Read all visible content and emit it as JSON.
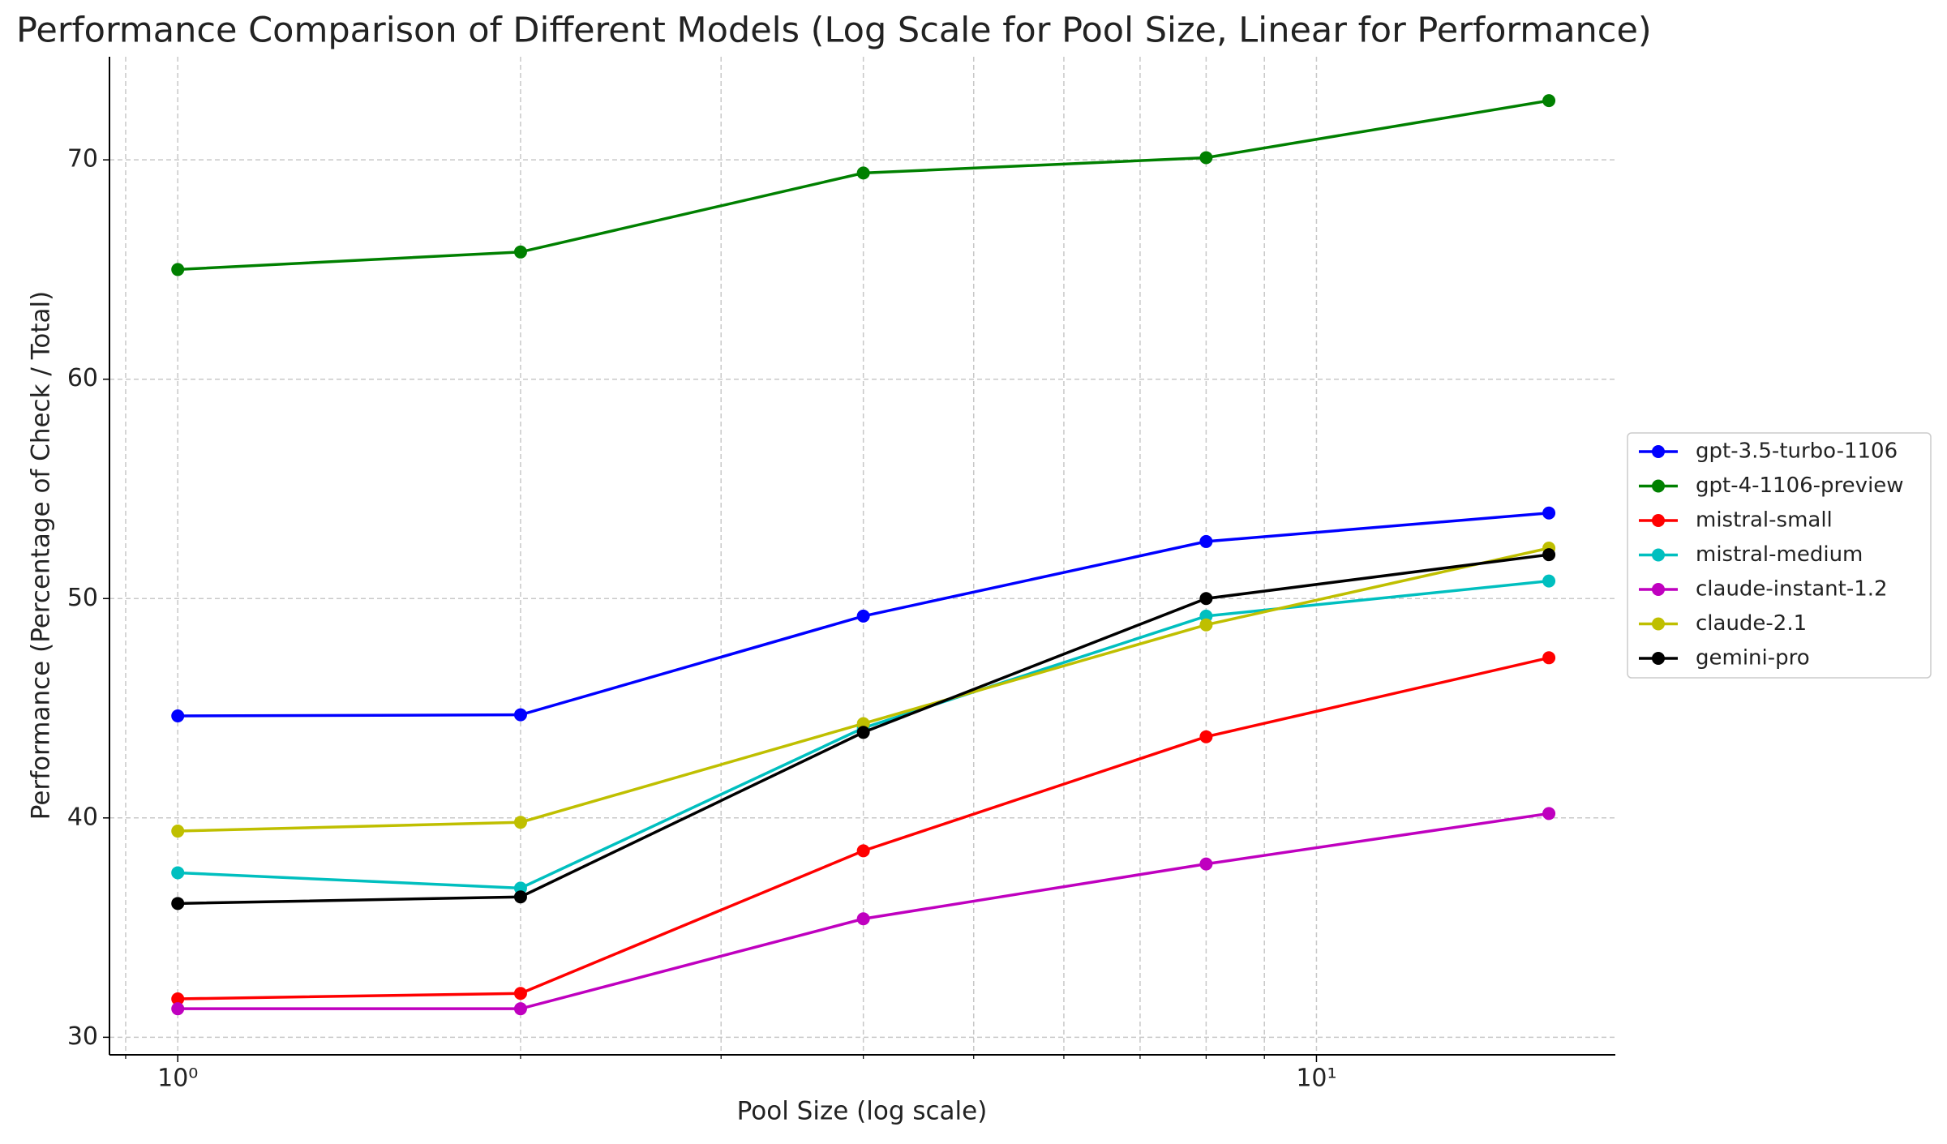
{
  "chart_data": {
    "type": "line",
    "title": "Performance Comparison of Different Models (Log Scale for Pool Size, Linear for Performance)",
    "x_label": "Pool Size (log scale)",
    "y_label": "Performance (Percentage of Check / Total)",
    "x": [
      1,
      2,
      4,
      8,
      16
    ],
    "xscale": "log",
    "xlim": [
      0.871,
      18.3
    ],
    "xticks": [
      {
        "value": 1,
        "label": "10⁰"
      },
      {
        "value": 10,
        "label": "10¹"
      }
    ],
    "xminorticks": [
      0.9,
      2,
      3,
      4,
      5,
      6,
      7,
      8,
      9
    ],
    "ylim": [
      29.2,
      74.7
    ],
    "yticks": [
      30,
      40,
      50,
      60,
      70
    ],
    "grid": true,
    "legend": "outside right",
    "series": [
      {
        "name": "gpt-3.5-turbo-1106",
        "color": "#0000ff",
        "values": [
          44.65,
          44.7,
          49.2,
          52.6,
          53.9
        ]
      },
      {
        "name": "gpt-4-1106-preview",
        "color": "#008000",
        "values": [
          65.0,
          65.8,
          69.4,
          70.1,
          72.7
        ]
      },
      {
        "name": "mistral-small",
        "color": "#ff0000",
        "values": [
          31.75,
          32.0,
          38.5,
          43.7,
          47.3
        ]
      },
      {
        "name": "mistral-medium",
        "color": "#00bfbf",
        "values": [
          37.5,
          36.8,
          44.1,
          49.2,
          50.8
        ]
      },
      {
        "name": "claude-instant-1.2",
        "color": "#bf00bf",
        "values": [
          31.3,
          31.3,
          35.4,
          37.9,
          40.2
        ]
      },
      {
        "name": "claude-2.1",
        "color": "#bfbf00",
        "values": [
          39.4,
          39.8,
          44.3,
          48.8,
          52.3
        ]
      },
      {
        "name": "gemini-pro",
        "color": "#000000",
        "values": [
          36.1,
          36.4,
          43.9,
          50.0,
          52.0
        ]
      }
    ]
  }
}
